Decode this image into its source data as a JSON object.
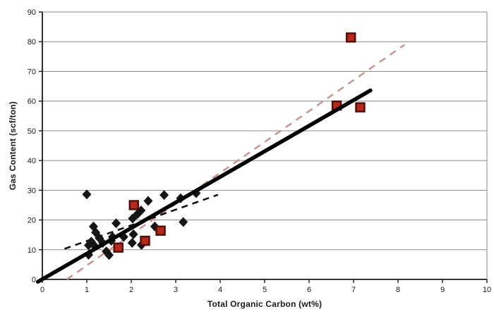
{
  "chart_data": {
    "type": "scatter",
    "title": "",
    "xlabel": "Total Organic Carbon (wt%)",
    "ylabel": "Gas Content (scf/ton)",
    "xlim": [
      0,
      10
    ],
    "ylim": [
      0,
      90
    ],
    "x_ticks": [
      0,
      1,
      2,
      3,
      4,
      5,
      6,
      7,
      8,
      9,
      10
    ],
    "y_ticks": [
      0,
      10,
      20,
      30,
      40,
      50,
      60,
      70,
      80,
      90
    ],
    "grid": "horizontal-only",
    "legend_position": "none",
    "colors": {
      "diamond_series": "#151515",
      "square_series_fill": "#b5281c",
      "square_series_border": "#4f0d05",
      "solid_trendline": "#000000",
      "pink_dashed_trendline": "#c9908c",
      "black_dashed_trendline": "#141414",
      "gridline": "#8a8a8a",
      "axis": "#1a1a1a",
      "tick_text": "#1b1b1b"
    },
    "series": [
      {
        "name": "diamond-series",
        "marker": "diamond",
        "points": [
          [
            1.0,
            28.6
          ],
          [
            1.15,
            17.8
          ],
          [
            1.2,
            15.8
          ],
          [
            1.28,
            13.9
          ],
          [
            1.1,
            12.7
          ],
          [
            1.04,
            11.5
          ],
          [
            1.18,
            11.2
          ],
          [
            1.36,
            12.3
          ],
          [
            1.04,
            8.3
          ],
          [
            1.44,
            9.4
          ],
          [
            1.5,
            8.2
          ],
          [
            1.55,
            13.0
          ],
          [
            1.58,
            14.3
          ],
          [
            1.66,
            18.9
          ],
          [
            1.83,
            14.3
          ],
          [
            2.02,
            12.3
          ],
          [
            2.05,
            15.2
          ],
          [
            2.23,
            11.6
          ],
          [
            2.03,
            20.5
          ],
          [
            2.14,
            22.0
          ],
          [
            2.22,
            23.2
          ],
          [
            2.38,
            26.4
          ],
          [
            2.53,
            17.8
          ],
          [
            2.74,
            28.4
          ],
          [
            3.11,
            27.3
          ],
          [
            3.17,
            19.3
          ],
          [
            3.46,
            29.0
          ]
        ]
      },
      {
        "name": "square-series",
        "marker": "square",
        "points": [
          [
            1.71,
            10.7
          ],
          [
            2.06,
            25.0
          ],
          [
            2.31,
            13.0
          ],
          [
            2.66,
            16.4
          ],
          [
            6.62,
            58.5
          ],
          [
            6.94,
            81.4
          ],
          [
            7.15,
            57.9
          ]
        ]
      }
    ],
    "trendlines": [
      {
        "name": "pink-dashed-trendline",
        "style": "dashed",
        "width": 2.4,
        "dash": "10,8",
        "from": [
          0.55,
          0
        ],
        "to": [
          8.15,
          79
        ]
      },
      {
        "name": "black-dashed-trendline",
        "style": "dashed",
        "width": 2.6,
        "dash": "9,7",
        "from": [
          0.5,
          10.3
        ],
        "to": [
          3.95,
          28.5
        ]
      },
      {
        "name": "solid-black-trendline",
        "style": "solid",
        "width": 5.5,
        "dash": "",
        "from": [
          -0.1,
          -0.8
        ],
        "to": [
          7.38,
          63.6
        ]
      }
    ]
  }
}
